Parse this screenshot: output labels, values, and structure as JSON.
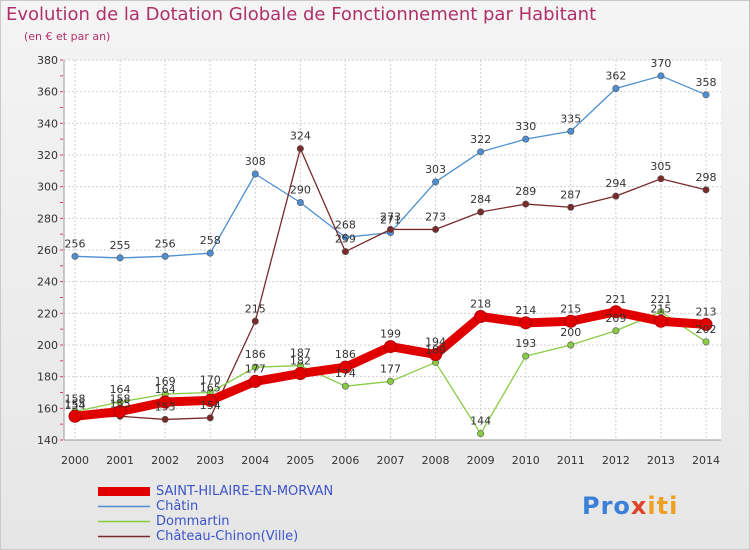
{
  "chart_data": {
    "type": "line",
    "title": "Evolution de la Dotation Globale de Fonctionnement par Habitant",
    "subtitle": "(en € et par an)",
    "categories": [
      "2000",
      "2001",
      "2002",
      "2003",
      "2004",
      "2005",
      "2006",
      "2007",
      "2008",
      "2009",
      "2010",
      "2011",
      "2012",
      "2013",
      "2014"
    ],
    "ylim": [
      140,
      380
    ],
    "yticks": [
      140,
      160,
      180,
      200,
      220,
      240,
      260,
      280,
      300,
      320,
      340,
      360,
      380
    ],
    "series": [
      {
        "name": "SAINT-HILAIRE-EN-MORVAN",
        "color": "#e00000",
        "values": [
          155,
          158,
          164,
          165,
          177,
          182,
          186,
          199,
          194,
          218,
          214,
          215,
          221,
          215,
          213
        ]
      },
      {
        "name": "Châtin",
        "color": "#4d8fd0",
        "values": [
          256,
          255,
          256,
          258,
          308,
          290,
          268,
          271,
          303,
          322,
          330,
          335,
          362,
          370,
          358
        ]
      },
      {
        "name": "Dommartin",
        "color": "#88cc44",
        "values": [
          158,
          164,
          169,
          170,
          186,
          187,
          174,
          177,
          189,
          144,
          193,
          200,
          209,
          221,
          202
        ]
      },
      {
        "name": "Château-Chinon(Ville)",
        "color": "#7a2a2a",
        "values": [
          154,
          155,
          153,
          154,
          215,
          324,
          259,
          273,
          273,
          284,
          289,
          287,
          294,
          305,
          298
        ]
      }
    ]
  },
  "brand": {
    "text_a": "Pro",
    "text_b": "x",
    "text_c": "iti"
  }
}
